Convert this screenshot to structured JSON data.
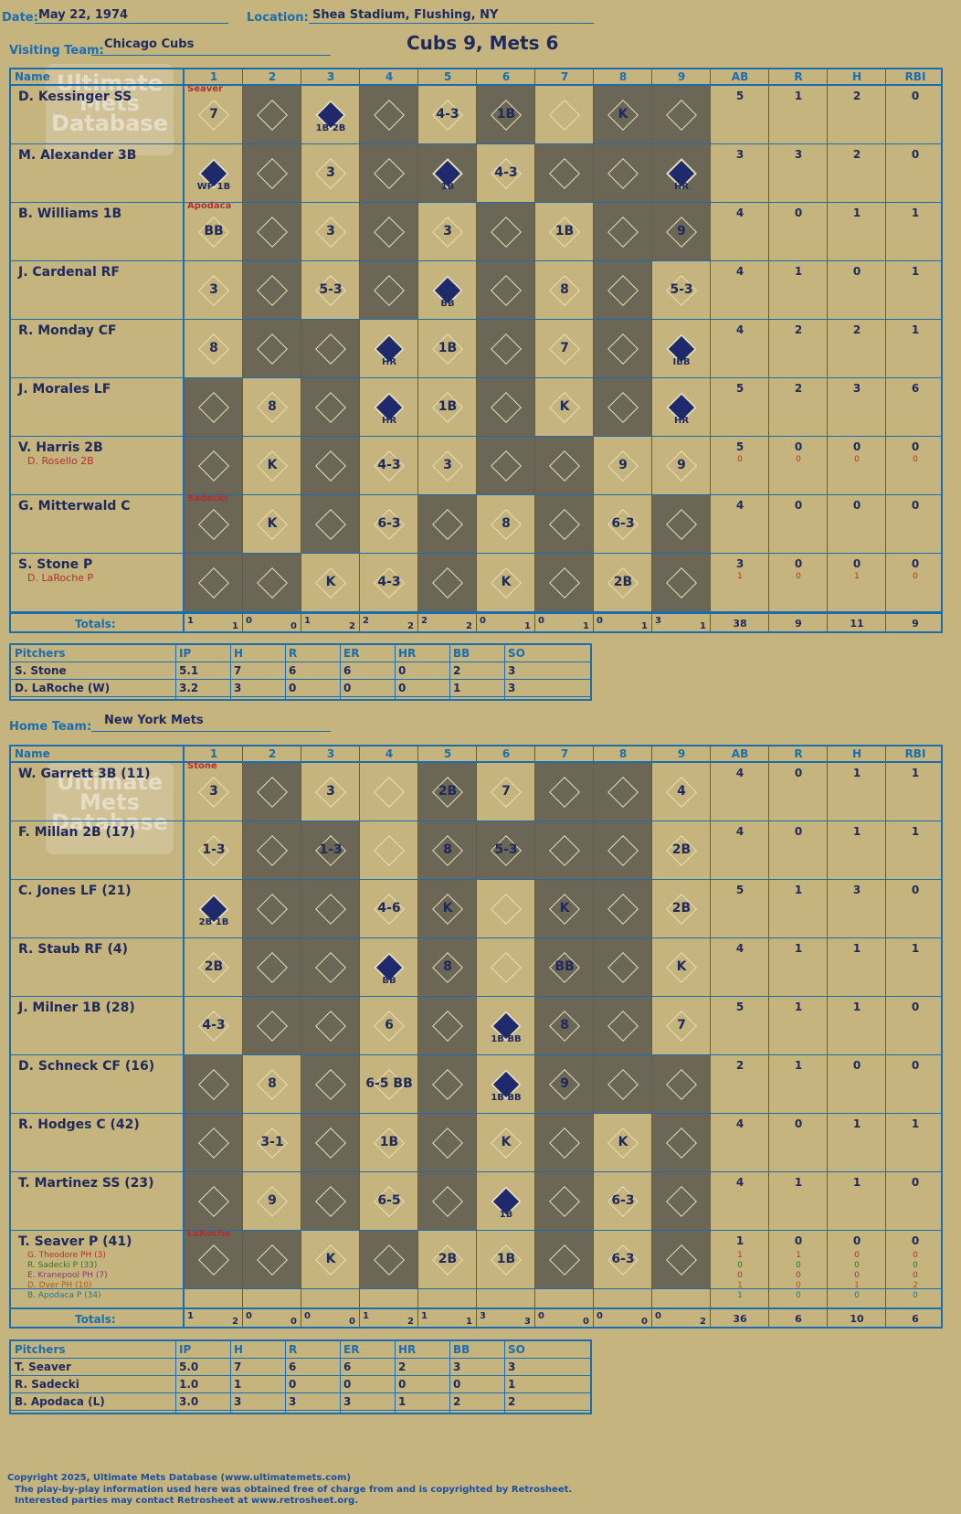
{
  "header": {
    "date_label": "Date:",
    "date": "May 22, 1974",
    "location_label": "Location:",
    "location": "Shea Stadium, Flushing, NY",
    "visiting_label": "Visiting Team:",
    "visiting_team": "Chicago Cubs",
    "score": "Cubs 9, Mets 6",
    "home_label": "Home Team:",
    "home_team": "New York Mets"
  },
  "columns": {
    "name": "Name",
    "innings": [
      "1",
      "2",
      "3",
      "4",
      "5",
      "6",
      "7",
      "8",
      "9"
    ],
    "stats": [
      "AB",
      "R",
      "H",
      "RBI"
    ]
  },
  "visitors": {
    "rows": [
      {
        "name": "D. Kessinger SS",
        "stats": [
          "5",
          "1",
          "2",
          "0"
        ],
        "subs": [],
        "marks": [
          "7",
          "",
          "1B 2B",
          "",
          "4-3",
          "1B",
          "",
          "K",
          ""
        ],
        "runs": [
          false,
          false,
          true,
          false,
          false,
          false,
          false,
          false,
          false
        ],
        "note": "Seaver"
      },
      {
        "name": "M. Alexander 3B",
        "stats": [
          "3",
          "3",
          "2",
          "0"
        ],
        "subs": [],
        "marks": [
          "WP 1B",
          "",
          "3",
          "",
          "1B",
          "4-3",
          "",
          "",
          "HR"
        ],
        "runs": [
          true,
          false,
          false,
          false,
          true,
          false,
          false,
          false,
          true
        ]
      },
      {
        "name": "B. Williams 1B",
        "stats": [
          "4",
          "0",
          "1",
          "1"
        ],
        "subs": [],
        "marks": [
          "BB",
          "",
          "3",
          "",
          "3",
          "",
          "1B",
          "",
          "9"
        ],
        "runs": [
          false,
          false,
          false,
          false,
          false,
          false,
          false,
          false,
          false
        ],
        "note": "Apodaca"
      },
      {
        "name": "J. Cardenal RF",
        "stats": [
          "4",
          "1",
          "0",
          "1"
        ],
        "subs": [],
        "marks": [
          "3",
          "",
          "5-3",
          "",
          "BB",
          "",
          "8",
          "",
          "5-3"
        ],
        "runs": [
          false,
          false,
          false,
          false,
          true,
          false,
          false,
          false,
          false
        ]
      },
      {
        "name": "R. Monday CF",
        "stats": [
          "4",
          "2",
          "2",
          "1"
        ],
        "subs": [],
        "marks": [
          "8",
          "",
          "",
          "HR",
          "1B",
          "",
          "7",
          "",
          "IBB"
        ],
        "runs": [
          false,
          false,
          false,
          true,
          false,
          false,
          false,
          false,
          true
        ]
      },
      {
        "name": "J. Morales LF",
        "stats": [
          "5",
          "2",
          "3",
          "6"
        ],
        "subs": [],
        "marks": [
          "",
          "8",
          "",
          "HR",
          "1B",
          "",
          "K",
          "",
          "HR"
        ],
        "runs": [
          false,
          false,
          false,
          true,
          false,
          false,
          false,
          false,
          true
        ]
      },
      {
        "name": "V. Harris 2B",
        "stats": [
          "5",
          "0",
          "0",
          "0"
        ],
        "subs": [
          {
            "name": "D. Rosello 2B",
            "stats": [
              "0",
              "0",
              "0",
              "0"
            ]
          }
        ],
        "marks": [
          "",
          "K",
          "",
          "4-3",
          "3",
          "",
          "",
          "9",
          "9"
        ],
        "runs": [
          false,
          false,
          false,
          false,
          false,
          false,
          false,
          false,
          false
        ]
      },
      {
        "name": "G. Mitterwald C",
        "stats": [
          "4",
          "0",
          "0",
          "0"
        ],
        "subs": [],
        "marks": [
          "",
          "K",
          "",
          "6-3",
          "",
          "8",
          "",
          "6-3",
          ""
        ],
        "runs": [
          false,
          false,
          false,
          false,
          false,
          false,
          false,
          false,
          false
        ],
        "note": "Sadecki"
      },
      {
        "name": "S. Stone P",
        "stats": [
          "3",
          "0",
          "0",
          "0"
        ],
        "subs": [
          {
            "name": "D. LaRoche P",
            "stats": [
              "1",
              "0",
              "1",
              "0"
            ]
          }
        ],
        "marks": [
          "",
          "",
          "K",
          "4-3",
          "",
          "K",
          "",
          "2B",
          ""
        ],
        "runs": [
          false,
          false,
          false,
          false,
          false,
          false,
          false,
          false,
          false
        ]
      }
    ],
    "totals_label": "Totals:",
    "totals_rh": [
      [
        "1",
        "1"
      ],
      [
        "0",
        "0"
      ],
      [
        "1",
        "2"
      ],
      [
        "2",
        "2"
      ],
      [
        "2",
        "2"
      ],
      [
        "0",
        "1"
      ],
      [
        "0",
        "1"
      ],
      [
        "0",
        "1"
      ],
      [
        "3",
        "1"
      ]
    ],
    "totals_stats": [
      "38",
      "9",
      "11",
      "9"
    ],
    "shade": [
      [
        1,
        3,
        5,
        7,
        8
      ],
      [
        1,
        3,
        4,
        6,
        7,
        8
      ],
      [
        1,
        3,
        5,
        7,
        8
      ],
      [
        1,
        3,
        5,
        7
      ],
      [
        1,
        2,
        5,
        7
      ],
      [
        0,
        2,
        5,
        7
      ],
      [
        0,
        2,
        5,
        6
      ],
      [
        0,
        2,
        4,
        6,
        8
      ],
      [
        0,
        1,
        4,
        6,
        8
      ]
    ]
  },
  "visitor_pitchers": {
    "header": [
      "Pitchers",
      "IP",
      "H",
      "R",
      "ER",
      "HR",
      "BB",
      "SO"
    ],
    "rows": [
      [
        "S. Stone",
        "5.1",
        "7",
        "6",
        "6",
        "0",
        "2",
        "3"
      ],
      [
        "D. LaRoche (W)",
        "3.2",
        "3",
        "0",
        "0",
        "0",
        "1",
        "3"
      ]
    ]
  },
  "home": {
    "rows": [
      {
        "name": "W. Garrett 3B (11)",
        "stats": [
          "4",
          "0",
          "1",
          "1"
        ],
        "marks": [
          "3",
          "",
          "3",
          "",
          "2B",
          "7",
          "",
          "",
          "4"
        ],
        "runs": [
          false,
          false,
          false,
          false,
          false,
          false,
          false,
          false,
          false
        ],
        "note": "Stone"
      },
      {
        "name": "F. Millan 2B (17)",
        "stats": [
          "4",
          "0",
          "1",
          "1"
        ],
        "marks": [
          "1-3",
          "",
          "1-3",
          "",
          "8",
          "5-3",
          "",
          "",
          "2B"
        ],
        "runs": [
          false,
          false,
          false,
          false,
          false,
          false,
          false,
          false,
          false
        ]
      },
      {
        "name": "C. Jones LF (21)",
        "stats": [
          "5",
          "1",
          "3",
          "0"
        ],
        "marks": [
          "2B 1B",
          "",
          "",
          "4-6",
          "K",
          "",
          "K",
          "",
          "2B"
        ],
        "runs": [
          true,
          false,
          false,
          false,
          false,
          false,
          false,
          false,
          false
        ]
      },
      {
        "name": "R. Staub RF (4)",
        "stats": [
          "4",
          "1",
          "1",
          "1"
        ],
        "marks": [
          "2B",
          "",
          "",
          "BB",
          "8",
          "",
          "BB",
          "",
          "K"
        ],
        "runs": [
          false,
          false,
          false,
          true,
          false,
          false,
          false,
          false,
          false
        ]
      },
      {
        "name": "J. Milner 1B (28)",
        "stats": [
          "5",
          "1",
          "1",
          "0"
        ],
        "marks": [
          "4-3",
          "",
          "",
          "6",
          "",
          "1B BB",
          "8",
          "",
          "7"
        ],
        "runs": [
          false,
          false,
          false,
          false,
          false,
          true,
          false,
          false,
          false
        ]
      },
      {
        "name": "D. Schneck CF (16)",
        "stats": [
          "2",
          "1",
          "0",
          "0"
        ],
        "marks": [
          "",
          "8",
          "",
          "6-5 BB",
          "",
          "1B BB",
          "9",
          "",
          ""
        ],
        "runs": [
          false,
          false,
          false,
          false,
          false,
          true,
          false,
          false,
          false
        ]
      },
      {
        "name": "R. Hodges C (42)",
        "stats": [
          "4",
          "0",
          "1",
          "1"
        ],
        "marks": [
          "",
          "3-1",
          "",
          "1B",
          "",
          "K",
          "",
          "K",
          ""
        ],
        "runs": [
          false,
          false,
          false,
          false,
          false,
          false,
          false,
          false,
          false
        ]
      },
      {
        "name": "T. Martinez SS (23)",
        "stats": [
          "4",
          "1",
          "1",
          "0"
        ],
        "marks": [
          "",
          "9",
          "",
          "6-5",
          "",
          "1B",
          "",
          "6-3",
          ""
        ],
        "runs": [
          false,
          false,
          false,
          false,
          false,
          true,
          false,
          false,
          false
        ]
      },
      {
        "name": "T. Seaver P (41)",
        "stats": [
          "1",
          "0",
          "0",
          "0"
        ],
        "marks": [
          "",
          "",
          "K",
          "",
          "2B",
          "1B",
          "",
          "6-3",
          ""
        ],
        "runs": [
          false,
          false,
          false,
          false,
          false,
          false,
          false,
          false,
          false
        ],
        "note": "LaRoche"
      }
    ],
    "subs": [
      {
        "name": "G. Theodore PH (3)",
        "stats": [
          "1",
          "1",
          "0",
          "0"
        ],
        "color": "#b03030"
      },
      {
        "name": "R. Sadecki P (33)",
        "stats": [
          "0",
          "0",
          "0",
          "0"
        ],
        "color": "#2a7a2a"
      },
      {
        "name": "E. Kranepool PH (7)",
        "stats": [
          "0",
          "0",
          "0",
          "0"
        ],
        "color": "#8a3a6a"
      },
      {
        "name": "D. Dyer PH (10)",
        "stats": [
          "1",
          "0",
          "1",
          "2"
        ],
        "color": "#b05a10"
      },
      {
        "name": "B. Apodaca P (34)",
        "stats": [
          "1",
          "0",
          "0",
          "0"
        ],
        "color": "#1a7a8a"
      }
    ],
    "totals_label": "Totals:",
    "totals_rh": [
      [
        "1",
        "2"
      ],
      [
        "0",
        "0"
      ],
      [
        "0",
        "0"
      ],
      [
        "1",
        "2"
      ],
      [
        "1",
        "1"
      ],
      [
        "3",
        "3"
      ],
      [
        "0",
        "0"
      ],
      [
        "0",
        "0"
      ],
      [
        "0",
        "2"
      ]
    ],
    "totals_stats": [
      "36",
      "6",
      "10",
      "6"
    ],
    "shade": [
      [
        1,
        4,
        6,
        7
      ],
      [
        1,
        2,
        4,
        5,
        6,
        7
      ],
      [
        1,
        2,
        4,
        6,
        7
      ],
      [
        1,
        2,
        4,
        6,
        7
      ],
      [
        1,
        2,
        4,
        6,
        7
      ],
      [
        0,
        2,
        4,
        6,
        7,
        8
      ],
      [
        0,
        2,
        4,
        6,
        8
      ],
      [
        0,
        2,
        4,
        6,
        8
      ],
      [
        0,
        1,
        3,
        6,
        8
      ]
    ]
  },
  "home_pitchers": {
    "header": [
      "Pitchers",
      "IP",
      "H",
      "R",
      "ER",
      "HR",
      "BB",
      "SO"
    ],
    "rows": [
      [
        "T. Seaver",
        "5.0",
        "7",
        "6",
        "6",
        "2",
        "3",
        "3"
      ],
      [
        "R. Sadecki",
        "1.0",
        "1",
        "0",
        "0",
        "0",
        "0",
        "1"
      ],
      [
        "B. Apodaca (L)",
        "3.0",
        "3",
        "3",
        "3",
        "1",
        "2",
        "2"
      ]
    ]
  },
  "watermark": "Ultimate Mets Database",
  "footer": {
    "line1": "Copyright 2025, Ultimate Mets Database (www.ultimatemets.com)",
    "line2": "The play-by-play information used here was obtained free of charge from and is copyrighted by Retrosheet.",
    "line3": "Interested parties may contact Retrosheet at www.retrosheet.org."
  }
}
